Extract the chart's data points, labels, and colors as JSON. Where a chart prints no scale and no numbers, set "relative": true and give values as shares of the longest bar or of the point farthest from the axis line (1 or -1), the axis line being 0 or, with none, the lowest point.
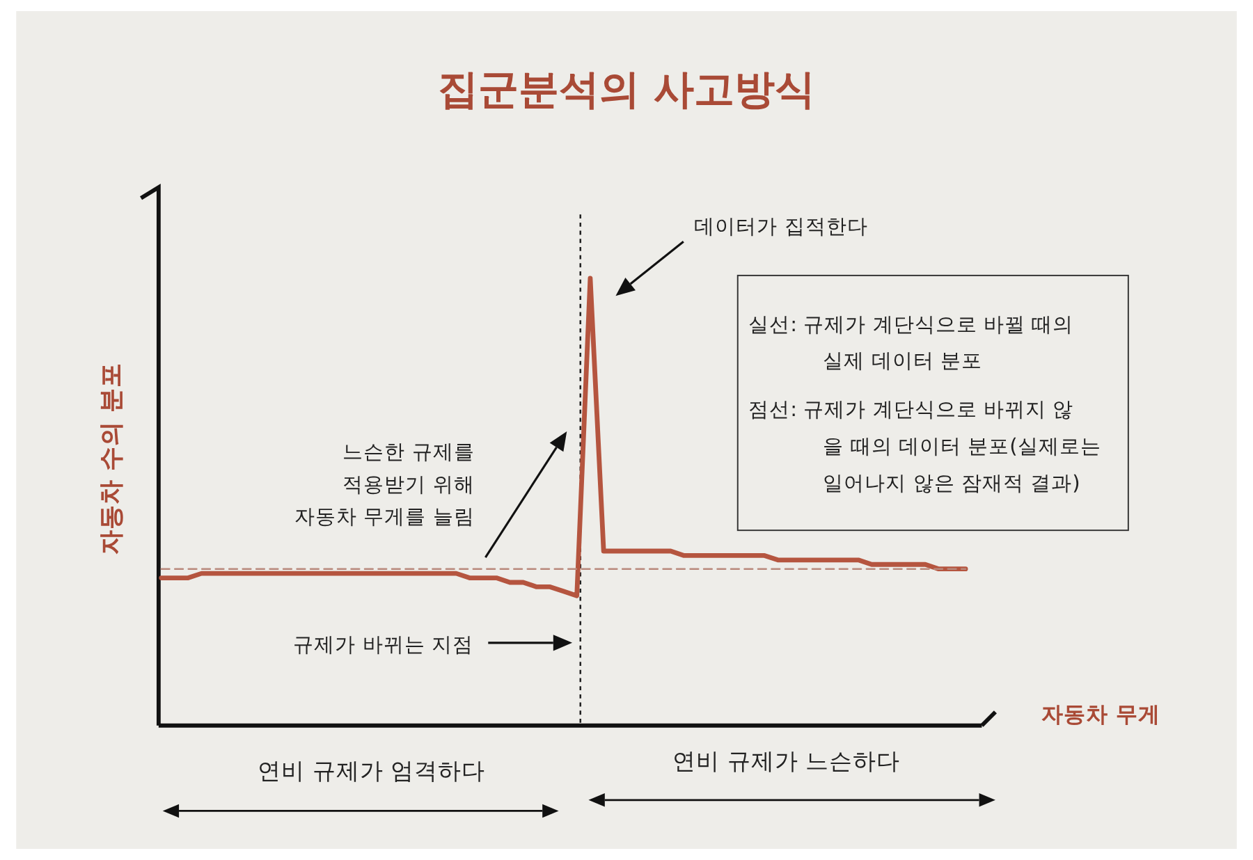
{
  "chart_data": {
    "type": "line",
    "title": "집군분석의 사고방식",
    "xlabel": "자동차 무게",
    "ylabel": "자동차 수의 분포",
    "relative": true,
    "legend": false,
    "categories": [
      null,
      null,
      null,
      null,
      null,
      null,
      null,
      null,
      null,
      null,
      null,
      null,
      null,
      null,
      null,
      null,
      null,
      null,
      null,
      null,
      null,
      null,
      null,
      null,
      null,
      null,
      null,
      null,
      null,
      null,
      null,
      null,
      null,
      null,
      null,
      null,
      null,
      null,
      null,
      null,
      null,
      null,
      null,
      null,
      null,
      null,
      null,
      null,
      null,
      null,
      null,
      null,
      null,
      null,
      null,
      null,
      null,
      null,
      null,
      null,
      null
    ],
    "series": [
      {
        "color": "#b5553f",
        "line_style": "solid",
        "values": [
          0.33,
          0.33,
          0.33,
          0.34,
          0.34,
          0.34,
          0.34,
          0.34,
          0.34,
          0.34,
          0.34,
          0.34,
          0.34,
          0.34,
          0.34,
          0.34,
          0.34,
          0.34,
          0.34,
          0.34,
          0.34,
          0.34,
          0.34,
          0.33,
          0.33,
          0.33,
          0.32,
          0.32,
          0.31,
          0.31,
          0.3,
          0.29,
          1,
          0.39,
          0.39,
          0.39,
          0.39,
          0.39,
          0.39,
          0.38,
          0.38,
          0.38,
          0.38,
          0.38,
          0.38,
          0.38,
          0.37,
          0.37,
          0.37,
          0.37,
          0.37,
          0.37,
          0.37,
          0.36,
          0.36,
          0.36,
          0.36,
          0.36,
          0.35,
          0.35,
          0.35
        ]
      },
      {
        "color": "#b9897c",
        "line_style": "dashed",
        "values": [
          0.35,
          0.35,
          0.35,
          0.35,
          0.35,
          0.35,
          0.35,
          0.35,
          0.35,
          0.35,
          0.35,
          0.35,
          0.35,
          0.35,
          0.35,
          0.35,
          0.35,
          0.35,
          0.35,
          0.35,
          0.35,
          0.35,
          0.35,
          0.35,
          0.35,
          0.35,
          0.35,
          0.35,
          0.35,
          0.35,
          0.35,
          0.35,
          0.35,
          0.35,
          0.35,
          0.35,
          0.35,
          0.35,
          0.35,
          0.35,
          0.35,
          0.35,
          0.35,
          0.35,
          0.35,
          0.35,
          0.35,
          0.35,
          0.35,
          0.35,
          0.35,
          0.35,
          0.35,
          0.35,
          0.35,
          0.35,
          0.35,
          0.35,
          0.35,
          0.35,
          0.35
        ]
      }
    ],
    "annotations": [
      "데이터가 집적한다",
      "느슨한 규제를\n적용받기 위해\n자동차 무게를 늘림",
      "규제가 바뀌는 지점",
      "실선: 규제가 계단식으로 바뀔 때의\n실제 데이터 분포",
      "점선: 규제가 계단식으로 바뀌지 않\n을 때의 데이터 분포(실제로는\n일어나지 않은 잠재적 결과)",
      "연비 규제가 엄격하다",
      "연비 규제가 느슨하다"
    ]
  }
}
